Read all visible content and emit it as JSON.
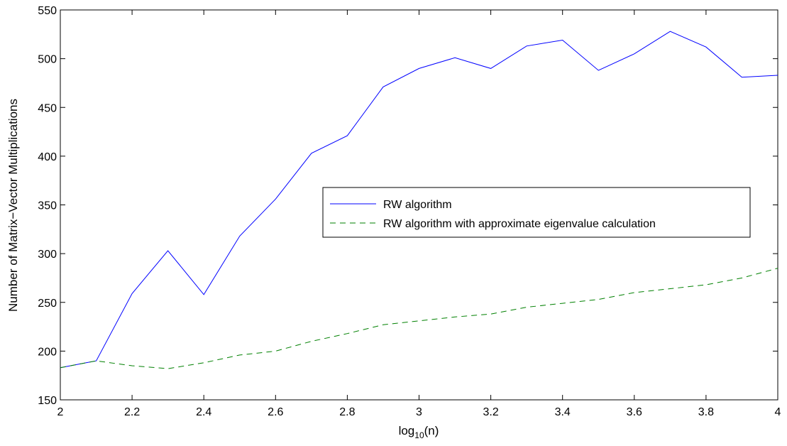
{
  "chart_data": {
    "type": "line",
    "xlabel": "log",
    "xlabel_sub": "10",
    "xlabel_tail": "(n)",
    "ylabel": "Number of Matrix−Vector Multiplications",
    "xlim": [
      2,
      4
    ],
    "ylim": [
      150,
      550
    ],
    "xticks": [
      2,
      2.2,
      2.4,
      2.6,
      2.8,
      3,
      3.2,
      3.4,
      3.6,
      3.8,
      4
    ],
    "yticks": [
      150,
      200,
      250,
      300,
      350,
      400,
      450,
      500,
      550
    ],
    "x": [
      2.0,
      2.1,
      2.2,
      2.3,
      2.4,
      2.5,
      2.6,
      2.7,
      2.8,
      2.9,
      3.0,
      3.1,
      3.2,
      3.3,
      3.4,
      3.5,
      3.6,
      3.7,
      3.8,
      3.9,
      4.0
    ],
    "grid": false,
    "legend_position": "center-right",
    "series": [
      {
        "name": "RW algorithm",
        "color": "#0000ff",
        "style": "solid",
        "values": [
          183,
          190,
          259,
          303,
          258,
          318,
          356,
          403,
          421,
          471,
          490,
          501,
          490,
          513,
          519,
          488,
          505,
          528,
          512,
          481,
          483
        ]
      },
      {
        "name": "RW algorithm with approximate eigenvalue calculation",
        "color": "#008000",
        "style": "dashed",
        "values": [
          183,
          190,
          185,
          182,
          188,
          196,
          200,
          210,
          218,
          227,
          231,
          235,
          238,
          245,
          249,
          253,
          260,
          264,
          268,
          275,
          285
        ]
      }
    ]
  }
}
